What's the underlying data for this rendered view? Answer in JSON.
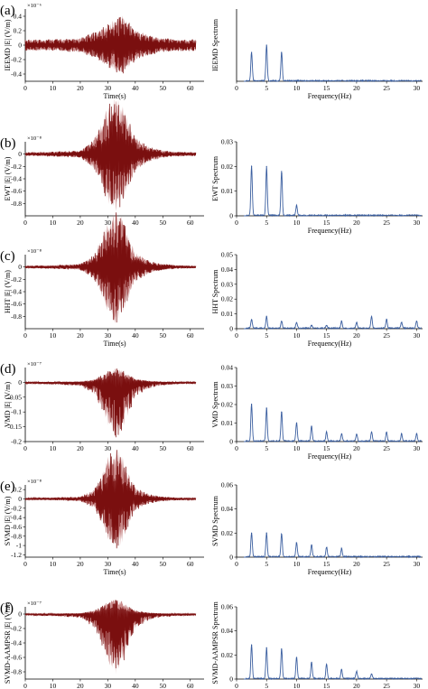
{
  "chart_data": [
    {
      "panel": "(a)",
      "side": "time",
      "type": "area",
      "ylabel": "IEEMD |E| (V/m)",
      "xlabel": "Time(s)",
      "multiplier": "×10⁻⁶",
      "xlim": [
        0,
        65
      ],
      "xticks": [
        0,
        10,
        20,
        30,
        40,
        50,
        60
      ],
      "ylim": [
        -0.5,
        0.5
      ],
      "yticks": [
        -0.4,
        -0.2,
        0,
        0.2,
        0.4
      ],
      "series": [
        {
          "x": [
            0,
            10,
            20,
            25,
            28,
            30,
            33,
            35,
            38,
            40,
            45,
            50,
            55,
            62
          ],
          "envelope": [
            0.08,
            0.08,
            0.1,
            0.18,
            0.25,
            0.3,
            0.38,
            0.42,
            0.3,
            0.22,
            0.14,
            0.1,
            0.08,
            0.08
          ]
        }
      ]
    },
    {
      "panel": "(a)",
      "side": "spectrum",
      "type": "line",
      "ylabel": "IEEMD Spectrum",
      "xlabel": "Frequency(Hz)",
      "xlim": [
        0,
        31
      ],
      "xticks": [
        0,
        5,
        10,
        15,
        20,
        25,
        30
      ],
      "ylim": [
        0,
        1
      ],
      "yticks": [],
      "series": [
        {
          "x": [
            2.5,
            5,
            7.5
          ],
          "y": [
            0.4,
            0.5,
            0.4
          ]
        }
      ]
    },
    {
      "panel": "(b)",
      "side": "time",
      "type": "area",
      "ylabel": "EWT |E| (V/m)",
      "xlabel": "",
      "multiplier": "×10⁻⁸",
      "xlim": [
        0,
        65
      ],
      "xticks": [
        0,
        10,
        20,
        30,
        40,
        50,
        60
      ],
      "ylim": [
        -1,
        0.2
      ],
      "yticks": [
        -0.8,
        -0.6,
        -0.4,
        -0.2,
        0
      ],
      "series": [
        {
          "x": [
            0,
            10,
            20,
            25,
            28,
            30,
            33,
            35,
            38,
            40,
            45,
            50,
            55,
            62
          ],
          "envelope": [
            0.03,
            0.04,
            0.06,
            0.25,
            0.55,
            0.8,
            0.95,
            0.85,
            0.5,
            0.28,
            0.12,
            0.06,
            0.04,
            0.03
          ]
        }
      ]
    },
    {
      "panel": "(b)",
      "side": "spectrum",
      "type": "line",
      "ylabel": "EWT Spectrum",
      "xlabel": "Frequency(Hz)",
      "xlim": [
        0,
        31
      ],
      "xticks": [
        0,
        5,
        10,
        15,
        20,
        25,
        30
      ],
      "ylim": [
        0,
        0.03
      ],
      "yticks": [
        0,
        0.01,
        0.02,
        0.03
      ],
      "series": [
        {
          "x": [
            2.5,
            5,
            7.5,
            10
          ],
          "y": [
            0.02,
            0.02,
            0.018,
            0.004
          ]
        }
      ]
    },
    {
      "panel": "(c)",
      "side": "time",
      "type": "area",
      "ylabel": "HHT |E| (V/m)",
      "xlabel": "Time(s)",
      "multiplier": "×10⁻⁸",
      "xlim": [
        0,
        65
      ],
      "xticks": [
        0,
        10,
        20,
        30,
        40,
        50,
        60
      ],
      "ylim": [
        -1,
        0.2
      ],
      "yticks": [
        -0.8,
        -0.6,
        -0.4,
        -0.2,
        0
      ],
      "series": [
        {
          "x": [
            0,
            10,
            20,
            25,
            28,
            30,
            33,
            35,
            38,
            40,
            45,
            50,
            55,
            62
          ],
          "envelope": [
            0.02,
            0.03,
            0.05,
            0.2,
            0.5,
            0.75,
            0.95,
            0.85,
            0.45,
            0.25,
            0.1,
            0.05,
            0.03,
            0.02
          ]
        }
      ]
    },
    {
      "panel": "(c)",
      "side": "spectrum",
      "type": "line",
      "ylabel": "HHT Spectrum",
      "xlabel": "Frequency(Hz)",
      "xlim": [
        0,
        31
      ],
      "xticks": [
        0,
        5,
        10,
        15,
        20,
        25,
        30
      ],
      "ylim": [
        0,
        0.05
      ],
      "yticks": [
        0,
        0.01,
        0.02,
        0.03,
        0.04,
        0.05
      ],
      "series": [
        {
          "x": [
            2.5,
            5,
            7.5,
            10,
            12.5,
            15,
            17.5,
            20,
            22.5,
            25,
            27.5,
            30
          ],
          "y": [
            0.006,
            0.008,
            0.005,
            0.004,
            0.002,
            0.002,
            0.005,
            0.004,
            0.008,
            0.006,
            0.004,
            0.005
          ]
        }
      ]
    },
    {
      "panel": "(d)",
      "side": "time",
      "type": "area",
      "ylabel": "VMD |E| (V/m)",
      "xlabel": "",
      "multiplier": "×10⁻⁷",
      "xlim": [
        0,
        65
      ],
      "xticks": [
        0,
        10,
        20,
        30,
        40,
        50,
        60
      ],
      "ylim": [
        -0.2,
        0.05
      ],
      "yticks": [
        -0.2,
        -0.15,
        -0.1,
        -0.05,
        0
      ],
      "series": [
        {
          "x": [
            0,
            10,
            20,
            25,
            28,
            30,
            33,
            35,
            38,
            40,
            45,
            50,
            55,
            62
          ],
          "envelope": [
            0.005,
            0.007,
            0.012,
            0.04,
            0.1,
            0.15,
            0.19,
            0.17,
            0.1,
            0.05,
            0.02,
            0.01,
            0.007,
            0.005
          ]
        }
      ]
    },
    {
      "panel": "(d)",
      "side": "spectrum",
      "type": "line",
      "ylabel": "VMD Spectrum",
      "xlabel": "Frequency(Hz)",
      "xlim": [
        0,
        31
      ],
      "xticks": [
        0,
        5,
        10,
        15,
        20,
        25,
        30
      ],
      "ylim": [
        0,
        0.04
      ],
      "yticks": [
        0,
        0.01,
        0.02,
        0.03,
        0.04
      ],
      "series": [
        {
          "x": [
            2.5,
            5,
            7.5,
            10,
            12.5,
            15,
            17.5,
            20,
            22.5,
            25,
            27.5,
            30
          ],
          "y": [
            0.02,
            0.018,
            0.016,
            0.01,
            0.008,
            0.005,
            0.004,
            0.004,
            0.005,
            0.005,
            0.004,
            0.004
          ]
        }
      ]
    },
    {
      "panel": "(e)",
      "side": "time",
      "type": "area",
      "ylabel": "SVMD |E| (V/m)",
      "xlabel": "Time(s)",
      "multiplier": "×10⁻⁸",
      "xlim": [
        0,
        65
      ],
      "xticks": [
        0,
        10,
        20,
        30,
        40,
        50,
        60
      ],
      "ylim": [
        -1.25,
        0.3
      ],
      "yticks": [
        -1.2,
        -1,
        -0.8,
        -0.6,
        -0.4,
        -0.2,
        0,
        0.2
      ],
      "series": [
        {
          "x": [
            0,
            10,
            20,
            25,
            28,
            30,
            33,
            35,
            38,
            40,
            45,
            50,
            55,
            62
          ],
          "envelope": [
            0.02,
            0.03,
            0.05,
            0.2,
            0.55,
            0.9,
            1.15,
            1.0,
            0.5,
            0.25,
            0.1,
            0.05,
            0.03,
            0.02
          ]
        }
      ]
    },
    {
      "panel": "(e)",
      "side": "spectrum",
      "type": "line",
      "ylabel": "SVMD Spectrum",
      "xlabel": "Frequency(Hz)",
      "xlim": [
        0,
        31
      ],
      "xticks": [
        0,
        5,
        10,
        15,
        20,
        25,
        30
      ],
      "ylim": [
        0,
        0.06
      ],
      "yticks": [
        0,
        0.02,
        0.04,
        0.06
      ],
      "series": [
        {
          "x": [
            2.5,
            5,
            7.5,
            10,
            12.5,
            15,
            17.5
          ],
          "y": [
            0.02,
            0.02,
            0.019,
            0.012,
            0.01,
            0.008,
            0.007
          ]
        }
      ]
    },
    {
      "panel": "(f)",
      "side": "time",
      "type": "area",
      "ylabel": "SVMD-AAMPSR |E| (V/m)",
      "xlabel": "Time(s)",
      "multiplier": "×10⁻⁷",
      "xlim": [
        0,
        65
      ],
      "xticks": [
        0,
        10,
        20,
        30,
        40,
        50,
        60
      ],
      "ylim": [
        -0.9,
        0.1
      ],
      "yticks": [
        -0.8,
        -0.6,
        -0.4,
        -0.2,
        0
      ],
      "series": [
        {
          "x": [
            0,
            10,
            20,
            25,
            28,
            30,
            33,
            35,
            38,
            40,
            45,
            50,
            55,
            62
          ],
          "envelope": [
            0.02,
            0.03,
            0.05,
            0.2,
            0.45,
            0.7,
            0.85,
            0.75,
            0.4,
            0.2,
            0.08,
            0.04,
            0.03,
            0.02
          ]
        }
      ]
    },
    {
      "panel": "(f)",
      "side": "spectrum",
      "type": "line",
      "ylabel": "SVMD-AAMPSR Spectrum",
      "xlabel": "Frequency(Hz)",
      "xlim": [
        0,
        31
      ],
      "xticks": [
        0,
        5,
        10,
        15,
        20,
        25,
        30
      ],
      "ylim": [
        0,
        0.06
      ],
      "yticks": [
        0,
        0.02,
        0.04,
        0.06
      ],
      "series": [
        {
          "x": [
            2.5,
            5,
            7.5,
            10,
            12.5,
            15,
            17.5,
            20,
            22.5
          ],
          "y": [
            0.028,
            0.026,
            0.025,
            0.018,
            0.014,
            0.012,
            0.008,
            0.006,
            0.004
          ]
        }
      ]
    }
  ],
  "colors": {
    "time_fill": "#c98a8a",
    "time_line": "#7a0f0f",
    "spectrum_line": "#3b5fa0",
    "axis": "#000000"
  }
}
